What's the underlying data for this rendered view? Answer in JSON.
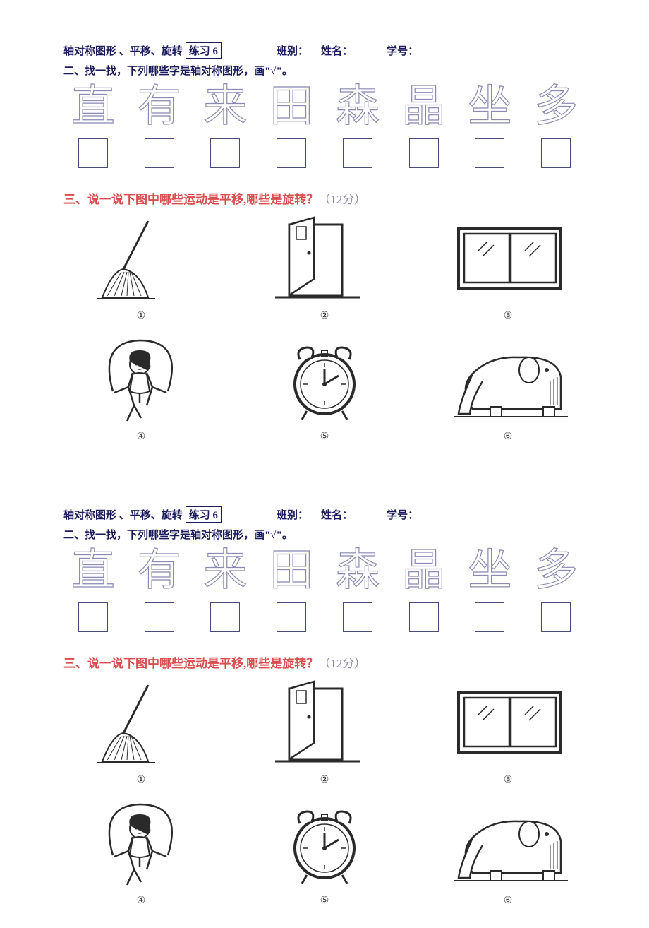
{
  "header": {
    "title_parts": [
      "轴对称图形 、平移、旋转",
      "练习 6"
    ],
    "fields": {
      "class": "班别：",
      "name": "姓名：",
      "id": "学号："
    }
  },
  "q2": {
    "instruction": "二、找一找，下列哪些字是轴对称图形，画\"√\"。",
    "chars": [
      "直",
      "有",
      "来",
      "田",
      "森",
      "晶",
      "坐",
      "多"
    ]
  },
  "q3": {
    "title_prefix": "三、说一说下图中哪些运动是平移,哪些是旋转？",
    "points": "（12分）",
    "labels": [
      "①",
      "②",
      "③",
      "④",
      "⑤",
      "⑥"
    ],
    "items": [
      "broom",
      "door",
      "window",
      "jumprope",
      "clock",
      "slide"
    ]
  },
  "style": {
    "text_color": "#1a1a5c",
    "outline_color": "#8a8ab5",
    "accent_color": "#d94f4f",
    "stroke": "#2a2a2a"
  }
}
